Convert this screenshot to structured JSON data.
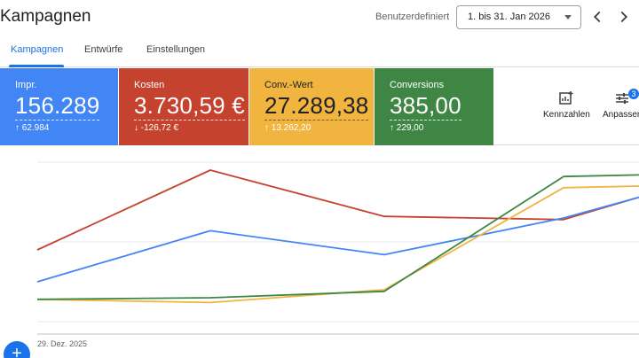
{
  "header": {
    "title": "Kampagnen",
    "date_label": "Benutzerdefiniert",
    "date_range": "1. bis 31. Jan 2026"
  },
  "tabs": [
    {
      "label": "Kampagnen",
      "active": true
    },
    {
      "label": "Entwürfe",
      "active": false
    },
    {
      "label": "Einstellungen",
      "active": false
    }
  ],
  "scorecards": [
    {
      "label": "Impr.",
      "value": "156.289",
      "delta": "↑ 62.984",
      "color": "#4285f4"
    },
    {
      "label": "Kosten",
      "value": "3.730,59 €",
      "delta": "↓ -126,72 €",
      "color": "#c5432e"
    },
    {
      "label": "Conv.-Wert",
      "value": "27.289,38",
      "delta": "↑ 13.262,20",
      "color": "#f0b43f"
    },
    {
      "label": "Conversions",
      "value": "385,00",
      "delta": "↑ 229,00",
      "color": "#3f8644"
    }
  ],
  "toolbar": {
    "metrics_label": "Kennzahlen",
    "adjust_label": "Anpassen",
    "adjust_badge": "3"
  },
  "chart_data": {
    "type": "line",
    "x": [
      "29. Dez. 2025",
      "",
      "",
      "",
      ""
    ],
    "series": [
      {
        "key": "kosten",
        "color": "#c5432e",
        "values": [
          0.45,
          0.95,
          0.66,
          0.64,
          0.78
        ]
      },
      {
        "key": "impr",
        "color": "#4285f4",
        "values": [
          0.25,
          0.57,
          0.42,
          0.65,
          0.78
        ]
      },
      {
        "key": "conv_wert",
        "color": "#f0b43f",
        "values": [
          0.14,
          0.12,
          0.2,
          0.84,
          0.85
        ]
      },
      {
        "key": "conversions",
        "color": "#3f8644",
        "values": [
          0.14,
          0.15,
          0.19,
          0.91,
          0.92
        ]
      }
    ],
    "xlabel": "",
    "ylabel": "",
    "ylim": [
      0,
      1
    ],
    "grid": true,
    "legend": "none"
  }
}
